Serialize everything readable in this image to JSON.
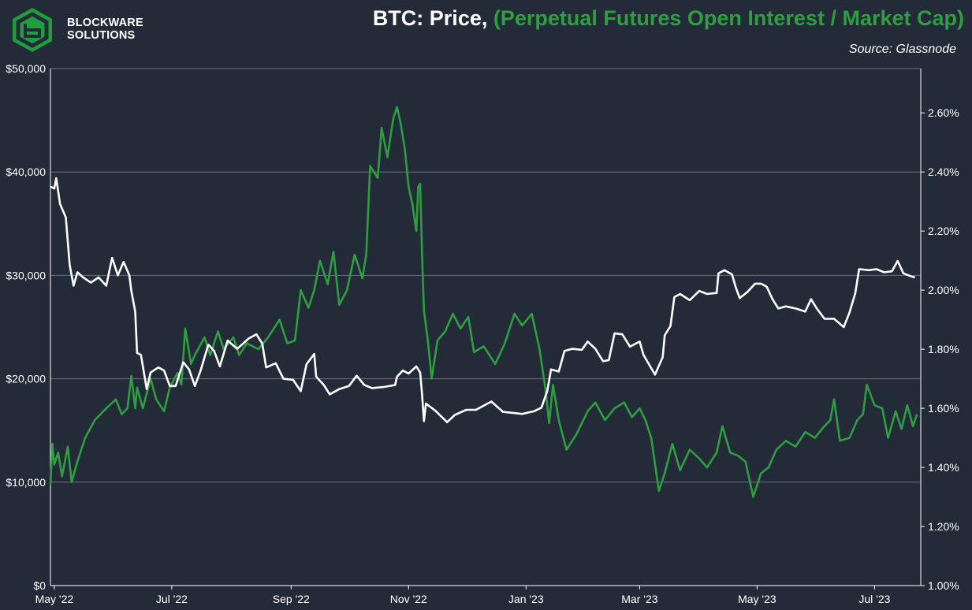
{
  "header": {
    "brand_line1": "BLOCKWARE",
    "brand_line2": "SOLUTIONS",
    "title_main": "BTC: Price,",
    "title_secondary": "(Perpetual Futures Open Interest / Market Cap)",
    "source": "Source: Glassnode"
  },
  "colors": {
    "background": "#232a38",
    "price_line": "#ffffff",
    "ratio_line": "#2e9e41",
    "gridline": "#6b7280"
  },
  "chart_data": {
    "type": "line",
    "title": "BTC: Price, (Perpetual Futures Open Interest / Market Cap)",
    "x_range": [
      "2022-04-29",
      "2023-07-25"
    ],
    "x_ticks": [
      {
        "date": "2022-05-01",
        "label": "May '22"
      },
      {
        "date": "2022-07-01",
        "label": "Jul '22"
      },
      {
        "date": "2022-09-01",
        "label": "Sep '22"
      },
      {
        "date": "2022-11-01",
        "label": "Nov '22"
      },
      {
        "date": "2023-01-01",
        "label": "Jan '23"
      },
      {
        "date": "2023-03-01",
        "label": "Mar '23"
      },
      {
        "date": "2023-05-01",
        "label": "May '23"
      },
      {
        "date": "2023-07-01",
        "label": "Jul '23"
      }
    ],
    "y_left": {
      "min": 0,
      "max": 50000,
      "ticks": [
        "$0",
        "$10,000",
        "$20,000",
        "$30,000",
        "$40,000",
        "$50,000"
      ]
    },
    "y_right": {
      "min": 1.0,
      "max": 2.75,
      "ticks": [
        "1.00%",
        "1.20%",
        "1.40%",
        "1.60%",
        "1.80%",
        "2.00%",
        "2.20%",
        "2.40%",
        "2.60%"
      ]
    },
    "grid": "horizontal",
    "series": [
      {
        "axis": "left",
        "color": "#ffffff",
        "points": [
          [
            "2022-04-29",
            38600
          ],
          [
            "2022-05-01",
            38400
          ],
          [
            "2022-05-02",
            39400
          ],
          [
            "2022-05-04",
            36900
          ],
          [
            "2022-05-07",
            35600
          ],
          [
            "2022-05-09",
            31000
          ],
          [
            "2022-05-11",
            29000
          ],
          [
            "2022-05-13",
            30300
          ],
          [
            "2022-05-16",
            29800
          ],
          [
            "2022-05-20",
            29300
          ],
          [
            "2022-05-24",
            29800
          ],
          [
            "2022-05-28",
            29000
          ],
          [
            "2022-05-31",
            31700
          ],
          [
            "2022-06-03",
            30000
          ],
          [
            "2022-06-06",
            31300
          ],
          [
            "2022-06-09",
            30000
          ],
          [
            "2022-06-10",
            28500
          ],
          [
            "2022-06-12",
            26500
          ],
          [
            "2022-06-13",
            22500
          ],
          [
            "2022-06-15",
            22300
          ],
          [
            "2022-06-18",
            19000
          ],
          [
            "2022-06-20",
            20600
          ],
          [
            "2022-06-24",
            21100
          ],
          [
            "2022-06-27",
            20800
          ],
          [
            "2022-06-30",
            19300
          ],
          [
            "2022-07-03",
            19300
          ],
          [
            "2022-07-07",
            21600
          ],
          [
            "2022-07-10",
            20900
          ],
          [
            "2022-07-13",
            19300
          ],
          [
            "2022-07-16",
            20800
          ],
          [
            "2022-07-20",
            23300
          ],
          [
            "2022-07-23",
            22700
          ],
          [
            "2022-07-26",
            21200
          ],
          [
            "2022-07-30",
            23700
          ],
          [
            "2022-08-04",
            22900
          ],
          [
            "2022-08-10",
            23900
          ],
          [
            "2022-08-14",
            24300
          ],
          [
            "2022-08-17",
            23400
          ],
          [
            "2022-08-19",
            21100
          ],
          [
            "2022-08-24",
            21500
          ],
          [
            "2022-08-28",
            20000
          ],
          [
            "2022-09-02",
            19900
          ],
          [
            "2022-09-06",
            18800
          ],
          [
            "2022-09-09",
            21400
          ],
          [
            "2022-09-13",
            22400
          ],
          [
            "2022-09-14",
            20200
          ],
          [
            "2022-09-18",
            19400
          ],
          [
            "2022-09-21",
            18500
          ],
          [
            "2022-09-26",
            19000
          ],
          [
            "2022-10-01",
            19300
          ],
          [
            "2022-10-05",
            20300
          ],
          [
            "2022-10-09",
            19400
          ],
          [
            "2022-10-13",
            19100
          ],
          [
            "2022-10-19",
            19200
          ],
          [
            "2022-10-25",
            19400
          ],
          [
            "2022-10-26",
            20200
          ],
          [
            "2022-10-29",
            20800
          ],
          [
            "2022-11-01",
            20500
          ],
          [
            "2022-11-05",
            21200
          ],
          [
            "2022-11-07",
            20600
          ],
          [
            "2022-11-08",
            18500
          ],
          [
            "2022-11-09",
            15900
          ],
          [
            "2022-11-10",
            17600
          ],
          [
            "2022-11-15",
            16900
          ],
          [
            "2022-11-21",
            15800
          ],
          [
            "2022-11-25",
            16500
          ],
          [
            "2022-12-01",
            17000
          ],
          [
            "2022-12-06",
            17000
          ],
          [
            "2022-12-14",
            17800
          ],
          [
            "2022-12-20",
            16800
          ],
          [
            "2022-12-30",
            16600
          ],
          [
            "2023-01-05",
            16850
          ],
          [
            "2023-01-09",
            17200
          ],
          [
            "2023-01-12",
            18800
          ],
          [
            "2023-01-14",
            20900
          ],
          [
            "2023-01-18",
            20700
          ],
          [
            "2023-01-21",
            22700
          ],
          [
            "2023-01-25",
            22900
          ],
          [
            "2023-01-30",
            22800
          ],
          [
            "2023-02-02",
            23600
          ],
          [
            "2023-02-06",
            22900
          ],
          [
            "2023-02-10",
            21700
          ],
          [
            "2023-02-13",
            21800
          ],
          [
            "2023-02-16",
            24400
          ],
          [
            "2023-02-20",
            24300
          ],
          [
            "2023-02-24",
            23100
          ],
          [
            "2023-03-01",
            23600
          ],
          [
            "2023-03-03",
            22300
          ],
          [
            "2023-03-09",
            20400
          ],
          [
            "2023-03-13",
            22100
          ],
          [
            "2023-03-14",
            24200
          ],
          [
            "2023-03-17",
            25100
          ],
          [
            "2023-03-19",
            27900
          ],
          [
            "2023-03-22",
            28200
          ],
          [
            "2023-03-27",
            27600
          ],
          [
            "2023-04-01",
            28500
          ],
          [
            "2023-04-05",
            28200
          ],
          [
            "2023-04-10",
            28300
          ],
          [
            "2023-04-11",
            30200
          ],
          [
            "2023-04-14",
            30500
          ],
          [
            "2023-04-18",
            30100
          ],
          [
            "2023-04-20",
            28800
          ],
          [
            "2023-04-22",
            27800
          ],
          [
            "2023-04-26",
            28400
          ],
          [
            "2023-04-30",
            29200
          ],
          [
            "2023-05-03",
            29200
          ],
          [
            "2023-05-06",
            28900
          ],
          [
            "2023-05-09",
            27700
          ],
          [
            "2023-05-12",
            26800
          ],
          [
            "2023-05-16",
            27000
          ],
          [
            "2023-05-21",
            26800
          ],
          [
            "2023-05-26",
            26500
          ],
          [
            "2023-05-29",
            27700
          ],
          [
            "2023-06-01",
            26800
          ],
          [
            "2023-06-05",
            25800
          ],
          [
            "2023-06-10",
            25800
          ],
          [
            "2023-06-15",
            25000
          ],
          [
            "2023-06-18",
            26400
          ],
          [
            "2023-06-21",
            28300
          ],
          [
            "2023-06-23",
            30600
          ],
          [
            "2023-06-28",
            30500
          ],
          [
            "2023-07-02",
            30600
          ],
          [
            "2023-07-06",
            30300
          ],
          [
            "2023-07-10",
            30400
          ],
          [
            "2023-07-13",
            31400
          ],
          [
            "2023-07-16",
            30200
          ],
          [
            "2023-07-20",
            29900
          ],
          [
            "2023-07-22",
            29800
          ]
        ]
      },
      {
        "axis": "right",
        "color": "#2e9e41",
        "points": [
          [
            "2022-04-29",
            1.34
          ],
          [
            "2022-04-30",
            1.48
          ],
          [
            "2022-05-01",
            1.41
          ],
          [
            "2022-05-03",
            1.45
          ],
          [
            "2022-05-05",
            1.37
          ],
          [
            "2022-05-08",
            1.47
          ],
          [
            "2022-05-10",
            1.35
          ],
          [
            "2022-05-13",
            1.42
          ],
          [
            "2022-05-17",
            1.5
          ],
          [
            "2022-05-22",
            1.56
          ],
          [
            "2022-05-28",
            1.6
          ],
          [
            "2022-06-02",
            1.63
          ],
          [
            "2022-06-05",
            1.58
          ],
          [
            "2022-06-08",
            1.6
          ],
          [
            "2022-06-10",
            1.71
          ],
          [
            "2022-06-12",
            1.6
          ],
          [
            "2022-06-13",
            1.67
          ],
          [
            "2022-06-16",
            1.6
          ],
          [
            "2022-06-20",
            1.7
          ],
          [
            "2022-06-23",
            1.63
          ],
          [
            "2022-06-27",
            1.59
          ],
          [
            "2022-06-30",
            1.67
          ],
          [
            "2022-07-04",
            1.72
          ],
          [
            "2022-07-06",
            1.68
          ],
          [
            "2022-07-08",
            1.87
          ],
          [
            "2022-07-11",
            1.75
          ],
          [
            "2022-07-13",
            1.78
          ],
          [
            "2022-07-18",
            1.84
          ],
          [
            "2022-07-21",
            1.78
          ],
          [
            "2022-07-25",
            1.86
          ],
          [
            "2022-07-28",
            1.8
          ],
          [
            "2022-08-02",
            1.84
          ],
          [
            "2022-08-05",
            1.78
          ],
          [
            "2022-08-09",
            1.82
          ],
          [
            "2022-08-15",
            1.8
          ],
          [
            "2022-08-20",
            1.84
          ],
          [
            "2022-08-26",
            1.9
          ],
          [
            "2022-08-30",
            1.82
          ],
          [
            "2022-09-03",
            1.83
          ],
          [
            "2022-09-06",
            2.0
          ],
          [
            "2022-09-10",
            1.94
          ],
          [
            "2022-09-13",
            2.0
          ],
          [
            "2022-09-16",
            2.1
          ],
          [
            "2022-09-20",
            2.02
          ],
          [
            "2022-09-23",
            2.13
          ],
          [
            "2022-09-26",
            1.95
          ],
          [
            "2022-09-30",
            2.0
          ],
          [
            "2022-10-04",
            2.12
          ],
          [
            "2022-10-08",
            2.04
          ],
          [
            "2022-10-10",
            2.12
          ],
          [
            "2022-10-12",
            2.42
          ],
          [
            "2022-10-16",
            2.38
          ],
          [
            "2022-10-18",
            2.55
          ],
          [
            "2022-10-21",
            2.45
          ],
          [
            "2022-10-24",
            2.58
          ],
          [
            "2022-10-26",
            2.62
          ],
          [
            "2022-10-28",
            2.56
          ],
          [
            "2022-10-30",
            2.48
          ],
          [
            "2022-11-01",
            2.35
          ],
          [
            "2022-11-03",
            2.29
          ],
          [
            "2022-11-05",
            2.2
          ],
          [
            "2022-11-06",
            2.35
          ],
          [
            "2022-11-07",
            2.36
          ],
          [
            "2022-11-08",
            2.12
          ],
          [
            "2022-11-09",
            1.93
          ],
          [
            "2022-11-11",
            1.83
          ],
          [
            "2022-11-13",
            1.7
          ],
          [
            "2022-11-16",
            1.83
          ],
          [
            "2022-11-20",
            1.86
          ],
          [
            "2022-11-24",
            1.92
          ],
          [
            "2022-11-28",
            1.87
          ],
          [
            "2022-12-02",
            1.91
          ],
          [
            "2022-12-05",
            1.79
          ],
          [
            "2022-12-10",
            1.81
          ],
          [
            "2022-12-16",
            1.75
          ],
          [
            "2022-12-21",
            1.82
          ],
          [
            "2022-12-26",
            1.92
          ],
          [
            "2022-12-30",
            1.88
          ],
          [
            "2023-01-04",
            1.92
          ],
          [
            "2023-01-08",
            1.8
          ],
          [
            "2023-01-11",
            1.67
          ],
          [
            "2023-01-13",
            1.55
          ],
          [
            "2023-01-15",
            1.68
          ],
          [
            "2023-01-18",
            1.56
          ],
          [
            "2023-01-22",
            1.46
          ],
          [
            "2023-01-27",
            1.51
          ],
          [
            "2023-02-02",
            1.59
          ],
          [
            "2023-02-06",
            1.62
          ],
          [
            "2023-02-11",
            1.56
          ],
          [
            "2023-02-16",
            1.6
          ],
          [
            "2023-02-21",
            1.62
          ],
          [
            "2023-02-25",
            1.57
          ],
          [
            "2023-03-01",
            1.6
          ],
          [
            "2023-03-04",
            1.56
          ],
          [
            "2023-03-07",
            1.5
          ],
          [
            "2023-03-11",
            1.32
          ],
          [
            "2023-03-14",
            1.38
          ],
          [
            "2023-03-18",
            1.48
          ],
          [
            "2023-03-22",
            1.39
          ],
          [
            "2023-03-27",
            1.46
          ],
          [
            "2023-04-01",
            1.43
          ],
          [
            "2023-04-05",
            1.4
          ],
          [
            "2023-04-10",
            1.45
          ],
          [
            "2023-04-13",
            1.54
          ],
          [
            "2023-04-17",
            1.45
          ],
          [
            "2023-04-21",
            1.44
          ],
          [
            "2023-04-25",
            1.42
          ],
          [
            "2023-04-29",
            1.3
          ],
          [
            "2023-05-03",
            1.38
          ],
          [
            "2023-05-07",
            1.4
          ],
          [
            "2023-05-11",
            1.46
          ],
          [
            "2023-05-16",
            1.49
          ],
          [
            "2023-05-21",
            1.47
          ],
          [
            "2023-05-26",
            1.52
          ],
          [
            "2023-05-31",
            1.5
          ],
          [
            "2023-06-05",
            1.54
          ],
          [
            "2023-06-08",
            1.56
          ],
          [
            "2023-06-10",
            1.63
          ],
          [
            "2023-06-13",
            1.49
          ],
          [
            "2023-06-18",
            1.5
          ],
          [
            "2023-06-22",
            1.56
          ],
          [
            "2023-06-25",
            1.58
          ],
          [
            "2023-06-27",
            1.68
          ],
          [
            "2023-07-01",
            1.61
          ],
          [
            "2023-07-05",
            1.6
          ],
          [
            "2023-07-08",
            1.5
          ],
          [
            "2023-07-12",
            1.59
          ],
          [
            "2023-07-15",
            1.53
          ],
          [
            "2023-07-18",
            1.61
          ],
          [
            "2023-07-21",
            1.54
          ],
          [
            "2023-07-23",
            1.58
          ]
        ]
      }
    ]
  }
}
